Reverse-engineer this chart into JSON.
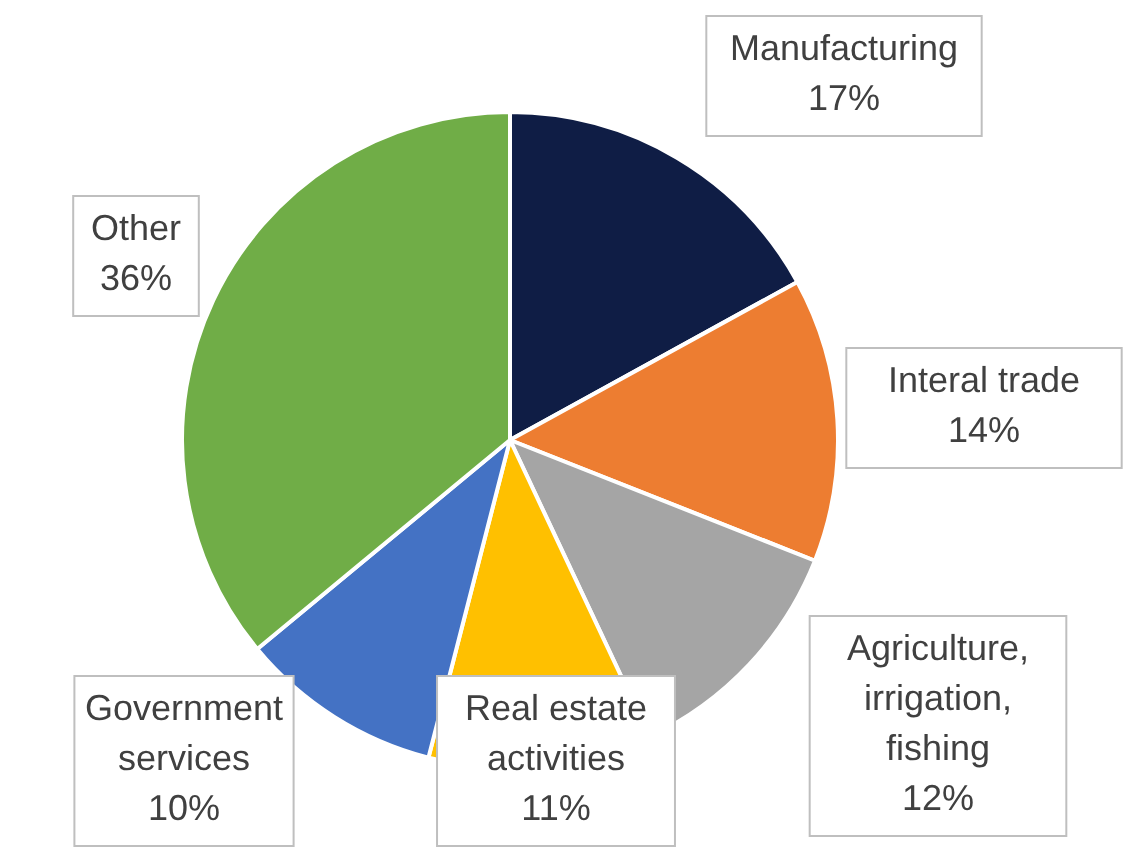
{
  "chart_data": {
    "type": "pie",
    "categories": [
      "Manufacturing",
      "Interal trade",
      "Agriculture, irrigation, fishing",
      "Real estate activities",
      "Government services",
      "Other"
    ],
    "values": [
      17,
      14,
      12,
      11,
      10,
      36
    ],
    "value_labels": [
      "17%",
      "14%",
      "12%",
      "11%",
      "10%",
      "36%"
    ],
    "colors": [
      "#0f1d45",
      "#ed7d31",
      "#a5a5a5",
      "#ffc000",
      "#4472c4",
      "#70ad47"
    ]
  }
}
